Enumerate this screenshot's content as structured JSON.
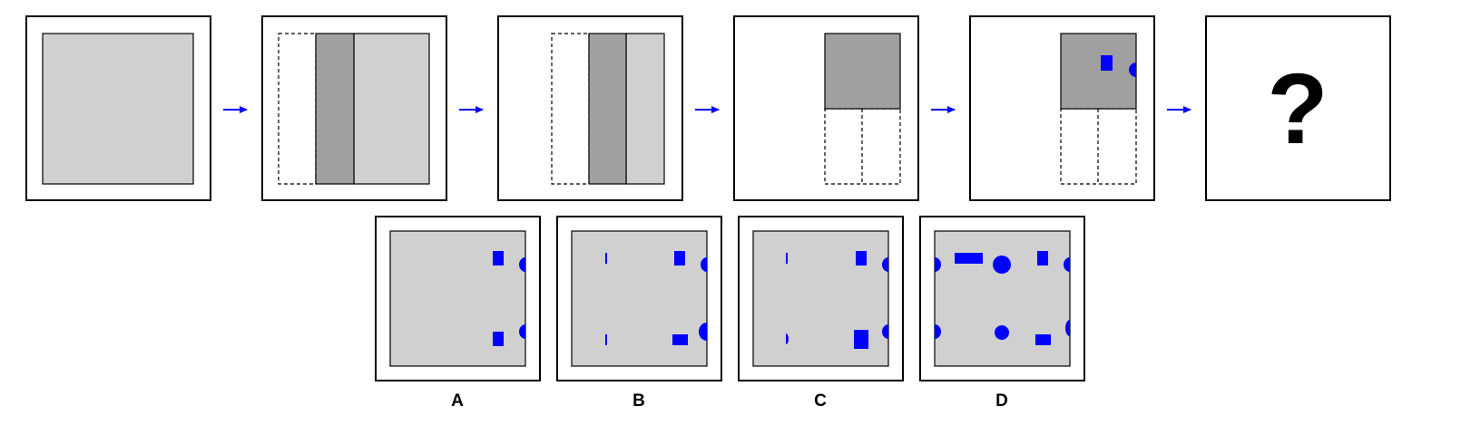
{
  "puzzle": {
    "question_mark": "?",
    "colors": {
      "paper": "#d0d0d0",
      "folded": "#a0a0a0",
      "hole": "#0000ff",
      "arrow": "#0000ff",
      "outline": "#000000"
    },
    "steps": [
      {
        "name": "unfolded-square"
      },
      {
        "name": "fold-left-strip"
      },
      {
        "name": "fold-strip-again"
      },
      {
        "name": "fold-down"
      },
      {
        "name": "punch-holes"
      },
      {
        "name": "unknown-result"
      }
    ]
  },
  "options": [
    {
      "label": "A"
    },
    {
      "label": "B"
    },
    {
      "label": "C"
    },
    {
      "label": "D"
    }
  ]
}
